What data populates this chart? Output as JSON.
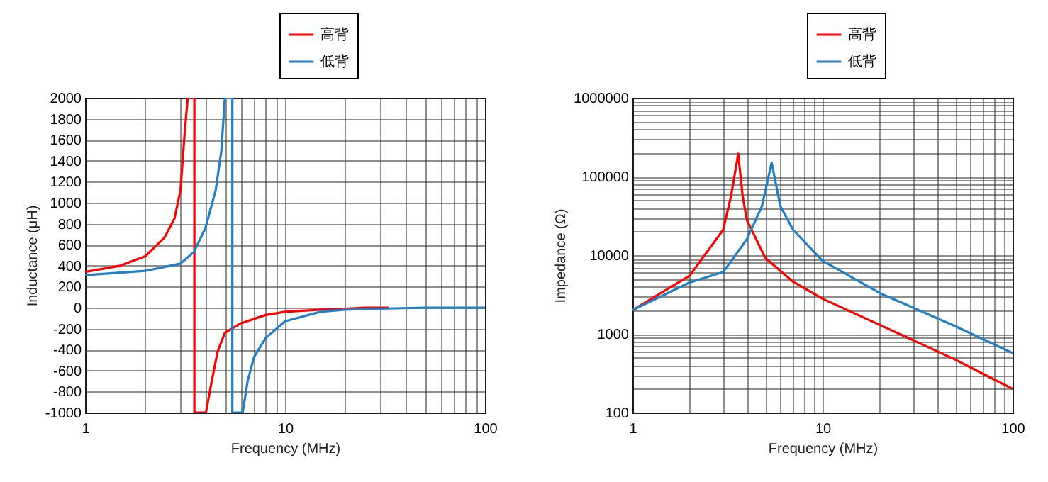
{
  "chart_data": [
    {
      "type": "line",
      "xlabel": "Frequency (MHz)",
      "ylabel": "Inductance (μH)",
      "log": "x",
      "grid": true,
      "legend": "top right",
      "xlim": [
        1,
        100
      ],
      "xticks": [
        1,
        10,
        100
      ],
      "ylim": [
        -1000,
        2000
      ],
      "yticks": [
        -1000,
        -800,
        -600,
        -400,
        -200,
        0,
        200,
        400,
        600,
        800,
        1000,
        1200,
        1400,
        1600,
        1800,
        2000
      ],
      "series": [
        {
          "name": "高背",
          "color": "#ff0000",
          "x": [
            1,
            1.5,
            2,
            2.5,
            2.8,
            3,
            3.15,
            3.26,
            3.52,
            3.52,
            4.02,
            4.3,
            4.6,
            5,
            6,
            8,
            10,
            15,
            20,
            25,
            33
          ],
          "values": [
            340,
            400,
            490,
            670,
            850,
            1120,
            1670,
            2000,
            2000,
            -1000,
            -1000,
            -700,
            -420,
            -240,
            -150,
            -70,
            -40,
            -20,
            -10,
            0,
            0
          ]
        },
        {
          "name": "低背",
          "color": "#1f7fc8",
          "x": [
            1,
            2,
            3,
            3.5,
            4,
            4.5,
            4.8,
            5,
            5.45,
            5.45,
            6.14,
            6.5,
            7,
            8,
            10,
            15,
            20,
            30,
            50,
            100
          ],
          "values": [
            310,
            350,
            420,
            530,
            760,
            1120,
            1490,
            2000,
            2000,
            -1000,
            -1000,
            -700,
            -470,
            -290,
            -130,
            -40,
            -20,
            -10,
            0,
            0
          ]
        }
      ]
    },
    {
      "type": "line",
      "xlabel": "Frequency (MHz)",
      "ylabel": "Impedance (Ω)",
      "log": "xy",
      "grid": true,
      "legend": "top right",
      "xlim": [
        1,
        100
      ],
      "xticks": [
        1,
        10,
        100
      ],
      "ylim": [
        100,
        1000000
      ],
      "yticks": [
        100,
        1000,
        10000,
        100000,
        1000000
      ],
      "series": [
        {
          "name": "高背",
          "color": "#ff0000",
          "x": [
            1,
            2,
            3,
            3.3,
            3.6,
            3.8,
            4,
            5,
            7,
            10,
            20,
            50,
            70,
            100
          ],
          "values": [
            2000,
            5500,
            21000,
            56000,
            195000,
            56000,
            28000,
            9200,
            4600,
            2800,
            1300,
            470,
            310,
            200
          ]
        },
        {
          "name": "低背",
          "color": "#1f7fc8",
          "x": [
            1,
            2,
            3,
            4,
            4.8,
            5.4,
            6,
            7,
            10,
            20,
            50,
            100
          ],
          "values": [
            2000,
            4500,
            6100,
            16000,
            42000,
            150000,
            42000,
            21000,
            8500,
            3300,
            1250,
            570
          ]
        }
      ]
    }
  ]
}
